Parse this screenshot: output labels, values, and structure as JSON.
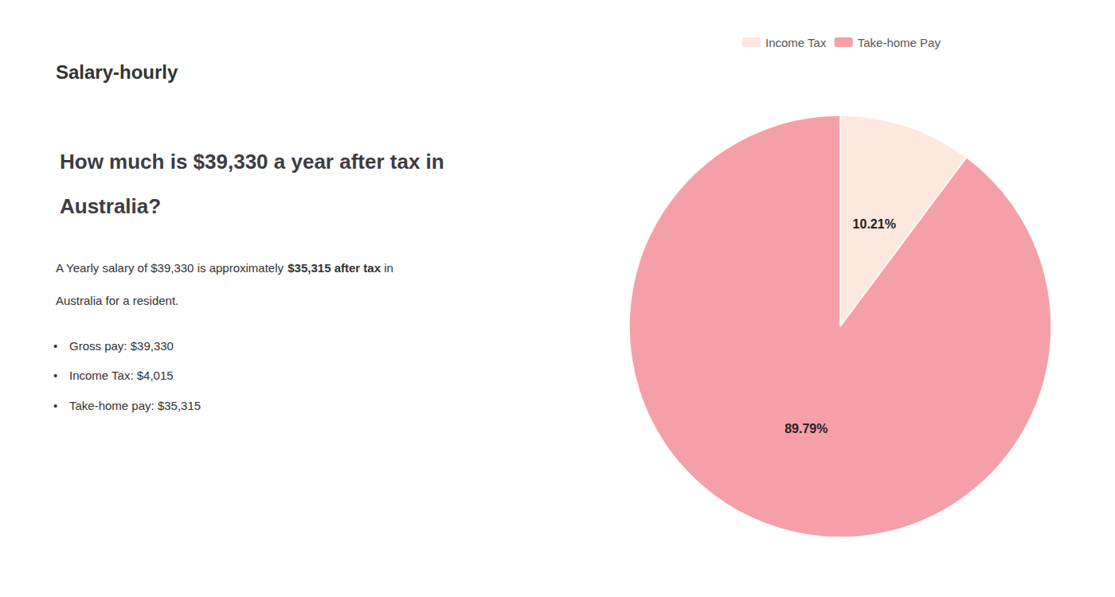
{
  "chart_data": {
    "type": "pie",
    "title": "How much is $39,330 a year after tax in\nAustralia?",
    "annotations": [
      [
        "S",
        "alary-hourly"
      ],
      [
        "A Yearly salary of $39,330 is approximately ",
        "$35,315 after tax",
        " in"
      ],
      [
        "Australia for a resident."
      ],
      [
        "•",
        "Gross pay: $39,330"
      ],
      [
        "•",
        "Income Tax: $4,015"
      ],
      [
        "•",
        "Take-home pay: $35,315"
      ]
    ],
    "categories": [
      "Income Tax",
      "Take-home Pay"
    ],
    "values": [
      10.21,
      89.79
    ],
    "value_labels": [
      "10.21%",
      "89.79%"
    ],
    "colors": [
      "#fce8df",
      "#f5a0a8"
    ],
    "data_labels": true,
    "legend": "top"
  }
}
